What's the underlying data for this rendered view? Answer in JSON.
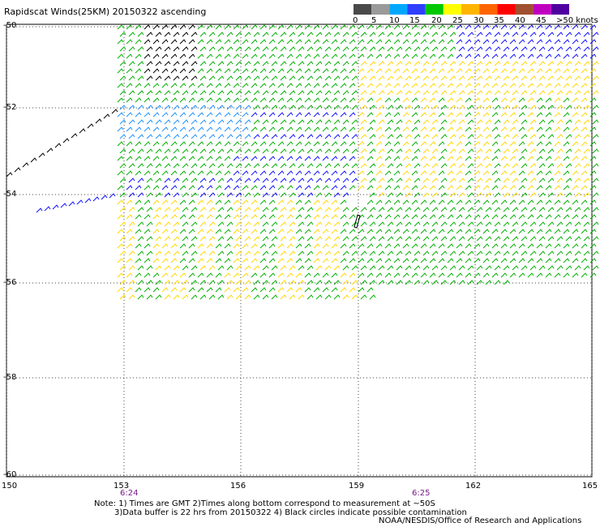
{
  "title": "Rapidscat Winds(25KM) 20150322 ascending",
  "legend": {
    "labels": [
      "0",
      "5",
      "10",
      "15",
      "20",
      "25",
      "30",
      "35",
      "40",
      "45",
      ">50 knots"
    ],
    "colors": [
      "#4a4a4a",
      "#9a9a9a",
      "#00a8ff",
      "#2f3fff",
      "#00c800",
      "#ffff00",
      "#ffb400",
      "#ff6400",
      "#ff0000",
      "#a05030",
      "#c000c0",
      "#5000a0"
    ]
  },
  "latitudes": [
    "-50",
    "-52",
    "-54",
    "-56",
    "-58",
    "-60"
  ],
  "longitudes": [
    "150",
    "153",
    "156",
    "159",
    "162",
    "165"
  ],
  "times": [
    {
      "label": "6:24",
      "lon": 153
    },
    {
      "label": "6:25",
      "lon": 160.5
    }
  ],
  "notes": [
    "Note: 1) Times are GMT 2)Times along bottom correspond to measurement at ~50S",
    "3)Data buffer is 22 hrs from 20150322 4) Black circles indicate possible contamination"
  ],
  "credit": "NOAA/NESDIS/Office of Research and Applications",
  "wind_colors": {
    "black": "#000000",
    "lightblue": "#1e90ff",
    "blue": "#1010ff",
    "green": "#00b000",
    "darkgreen": "#006400",
    "yellow": "#ffd700"
  }
}
